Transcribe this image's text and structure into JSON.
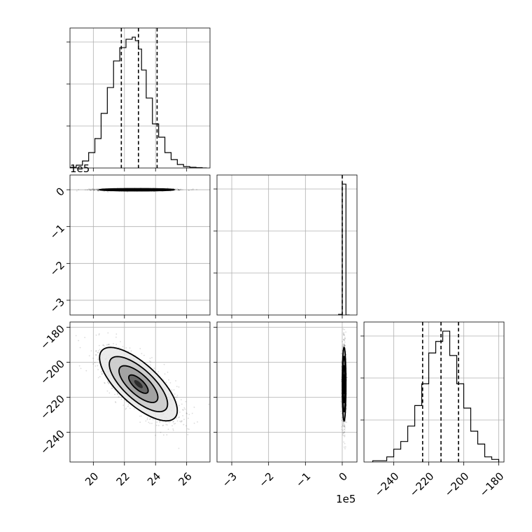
{
  "chart_data": {
    "type": "corner",
    "parameters": [
      {
        "key": "p0",
        "range": [
          18.5,
          27.5
        ],
        "ticks": [
          20,
          22,
          24,
          26
        ],
        "tick_labels": [
          "20",
          "22",
          "24",
          "26"
        ],
        "offset_text": ""
      },
      {
        "key": "p1",
        "range": [
          -340000,
          40000
        ],
        "ticks": [
          -300000,
          -200000,
          -100000,
          0
        ],
        "tick_labels": [
          "−3",
          "−2",
          "−1",
          "0"
        ],
        "offset_text": "1e5"
      },
      {
        "key": "p2",
        "range": [
          -257,
          -177
        ],
        "ticks": [
          -240,
          -220,
          -200,
          -180
        ],
        "tick_labels": [
          "−240",
          "−220",
          "−200",
          "−180"
        ],
        "offset_text": ""
      }
    ],
    "histograms": [
      {
        "parameter": "p0",
        "bin_edges": [
          18.5,
          18.9,
          19.3,
          19.7,
          20.1,
          20.5,
          20.9,
          21.3,
          21.7,
          22.1,
          22.5,
          22.7,
          22.9,
          23.1,
          23.4,
          23.8,
          24.2,
          24.6,
          25.0,
          25.4,
          25.8,
          26.2,
          26.6,
          27.0,
          27.3
        ],
        "counts": [
          1,
          4,
          10,
          22,
          42,
          78,
          115,
          153,
          172,
          184,
          187,
          182,
          170,
          140,
          100,
          63,
          44,
          22,
          12,
          5,
          2,
          1,
          0.5,
          0
        ],
        "quantile_lines": [
          21.8,
          22.9,
          24.1
        ]
      },
      {
        "parameter": "p1",
        "bin_edges": [
          -10000,
          0,
          10000,
          20000
        ],
        "counts": [
          1,
          200,
          0
        ],
        "quantile_lines": [
          0
        ]
      },
      {
        "parameter": "p2",
        "bin_edges": [
          -252,
          -248,
          -244,
          -240,
          -236,
          -232,
          -228,
          -224,
          -220,
          -216,
          -212,
          -208,
          -204,
          -200,
          -196,
          -192,
          -188,
          -184,
          -180
        ],
        "counts": [
          1,
          1,
          4,
          10,
          16,
          28,
          44,
          61,
          85,
          94,
          102,
          83,
          61,
          42,
          24,
          14,
          4,
          2
        ],
        "quantile_lines": [
          -223.5,
          -213,
          -203
        ]
      }
    ],
    "panels_2d": [
      {
        "x": "p0",
        "y": "p1",
        "center": [
          22.8,
          0
        ],
        "spread": [
          1.2,
          1500
        ],
        "correlation": 0.0
      },
      {
        "x": "p0",
        "y": "p2",
        "center": [
          22.9,
          -212.5
        ],
        "spread": [
          1.25,
          10.5
        ],
        "correlation": -0.72
      },
      {
        "x": "p1",
        "y": "p2",
        "center": [
          5000,
          -212.5
        ],
        "spread": [
          2500,
          10.5
        ],
        "correlation": 0.0
      }
    ],
    "grid": true,
    "axis_labels": [
      "",
      "",
      ""
    ]
  }
}
